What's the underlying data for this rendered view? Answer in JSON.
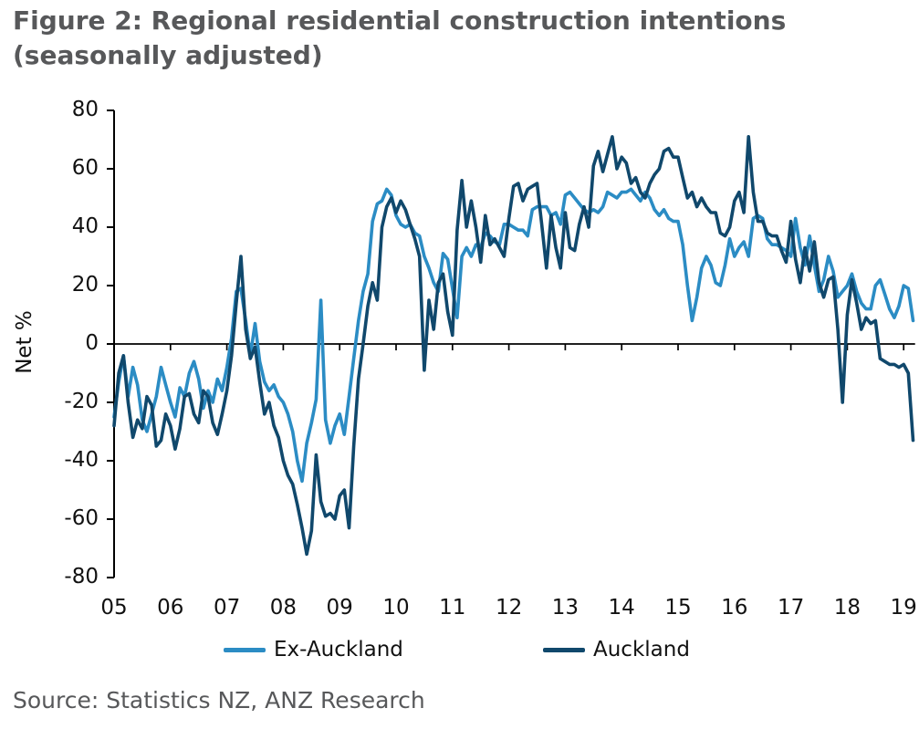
{
  "title": {
    "line1": "Figure 2: Regional residential construction intentions",
    "line2": "(seasonally adjusted)"
  },
  "source": "Source: Statistics NZ, ANZ Research",
  "colors": {
    "ex_auckland": "#2b8cc4",
    "auckland": "#10486c",
    "title_text": "#57585a",
    "axis": "#000000"
  },
  "chart_data": {
    "type": "line",
    "title": "Figure 2: Regional residential construction intentions (seasonally adjusted)",
    "xlabel": "",
    "ylabel": "Net %",
    "ylim": [
      -80,
      80
    ],
    "y_ticks": [
      80,
      60,
      40,
      20,
      0,
      -20,
      -40,
      -60,
      -80
    ],
    "x_tick_labels": [
      "05",
      "06",
      "07",
      "08",
      "09",
      "10",
      "11",
      "12",
      "13",
      "14",
      "15",
      "16",
      "17",
      "18",
      "19"
    ],
    "x_tick_years": [
      2005,
      2006,
      2007,
      2008,
      2009,
      2010,
      2011,
      2012,
      2013,
      2014,
      2015,
      2016,
      2017,
      2018,
      2019
    ],
    "x_start_year": 2005.0,
    "x_step_years": 0.083333,
    "x_end_year": 2019.17,
    "grid": false,
    "legend_position": "bottom",
    "legend": [
      {
        "label": "Ex-Auckland",
        "color": "#2b8cc4"
      },
      {
        "label": "Auckland",
        "color": "#10486c"
      }
    ],
    "series": [
      {
        "name": "Ex-Auckland",
        "color": "#2b8cc4",
        "values": [
          -25,
          -13,
          -4,
          -18,
          -8,
          -14,
          -26,
          -30,
          -24,
          -18,
          -8,
          -14,
          -20,
          -25,
          -15,
          -18,
          -10,
          -6,
          -12,
          -22,
          -16,
          -20,
          -12,
          -16,
          -8,
          2,
          18,
          19,
          8,
          -4,
          7,
          -6,
          -13,
          -16,
          -14,
          -18,
          -20,
          -24,
          -30,
          -40,
          -47,
          -34,
          -27,
          -19,
          15,
          -26,
          -34,
          -28,
          -24,
          -31,
          -18,
          -5,
          8,
          18,
          24,
          42,
          48,
          49,
          53,
          51,
          44,
          41,
          40,
          41,
          38,
          37,
          30,
          26,
          21,
          18,
          31,
          29,
          19,
          9,
          30,
          33,
          30,
          34,
          33,
          38,
          37,
          35,
          34,
          41,
          41,
          40,
          39,
          39,
          37,
          46,
          47,
          47,
          47,
          44,
          45,
          41,
          51,
          52,
          50,
          48,
          46,
          45,
          46,
          45,
          47,
          52,
          51,
          50,
          52,
          52,
          53,
          51,
          49,
          52,
          50,
          46,
          44,
          46,
          43,
          42,
          42,
          34,
          20,
          8,
          16,
          26,
          30,
          27,
          21,
          20,
          27,
          36,
          30,
          33,
          35,
          30,
          43,
          44,
          43,
          36,
          34,
          34,
          33,
          32,
          30,
          43,
          33,
          27,
          37,
          27,
          18,
          22,
          30,
          25,
          16,
          18,
          20,
          24,
          18,
          14,
          12,
          12,
          20,
          22,
          17,
          12,
          9,
          13,
          20,
          19,
          8
        ]
      },
      {
        "name": "Auckland",
        "color": "#10486c",
        "values": [
          -28,
          -10,
          -4,
          -20,
          -32,
          -26,
          -29,
          -18,
          -21,
          -35,
          -33,
          -24,
          -28,
          -36,
          -29,
          -18,
          -17,
          -24,
          -27,
          -16,
          -18,
          -27,
          -31,
          -24,
          -16,
          -4,
          14,
          30,
          5,
          -5,
          -1,
          -13,
          -24,
          -20,
          -28,
          -32,
          -40,
          -45,
          -48,
          -55,
          -63,
          -72,
          -64,
          -38,
          -54,
          -59,
          -58,
          -60,
          -52,
          -50,
          -63,
          -35,
          -12,
          0,
          13,
          21,
          15,
          40,
          47,
          50,
          45,
          49,
          46,
          41,
          36,
          30,
          -9,
          15,
          5,
          21,
          24,
          11,
          3,
          39,
          56,
          40,
          49,
          40,
          28,
          44,
          34,
          36,
          33,
          30,
          43,
          54,
          55,
          49,
          53,
          54,
          55,
          41,
          26,
          44,
          33,
          26,
          45,
          33,
          32,
          41,
          47,
          40,
          61,
          66,
          59,
          65,
          71,
          60,
          64,
          62,
          55,
          57,
          52,
          50,
          55,
          58,
          60,
          66,
          67,
          64,
          64,
          57,
          50,
          52,
          47,
          50,
          47,
          45,
          45,
          38,
          37,
          40,
          49,
          52,
          45,
          71,
          52,
          42,
          42,
          38,
          37,
          37,
          32,
          28,
          42,
          29,
          21,
          33,
          25,
          35,
          21,
          16,
          22,
          23,
          5,
          -20,
          10,
          22,
          14,
          5,
          9,
          7,
          8,
          -5,
          -6,
          -7,
          -7,
          -8,
          -7,
          -10,
          -33
        ]
      }
    ]
  }
}
